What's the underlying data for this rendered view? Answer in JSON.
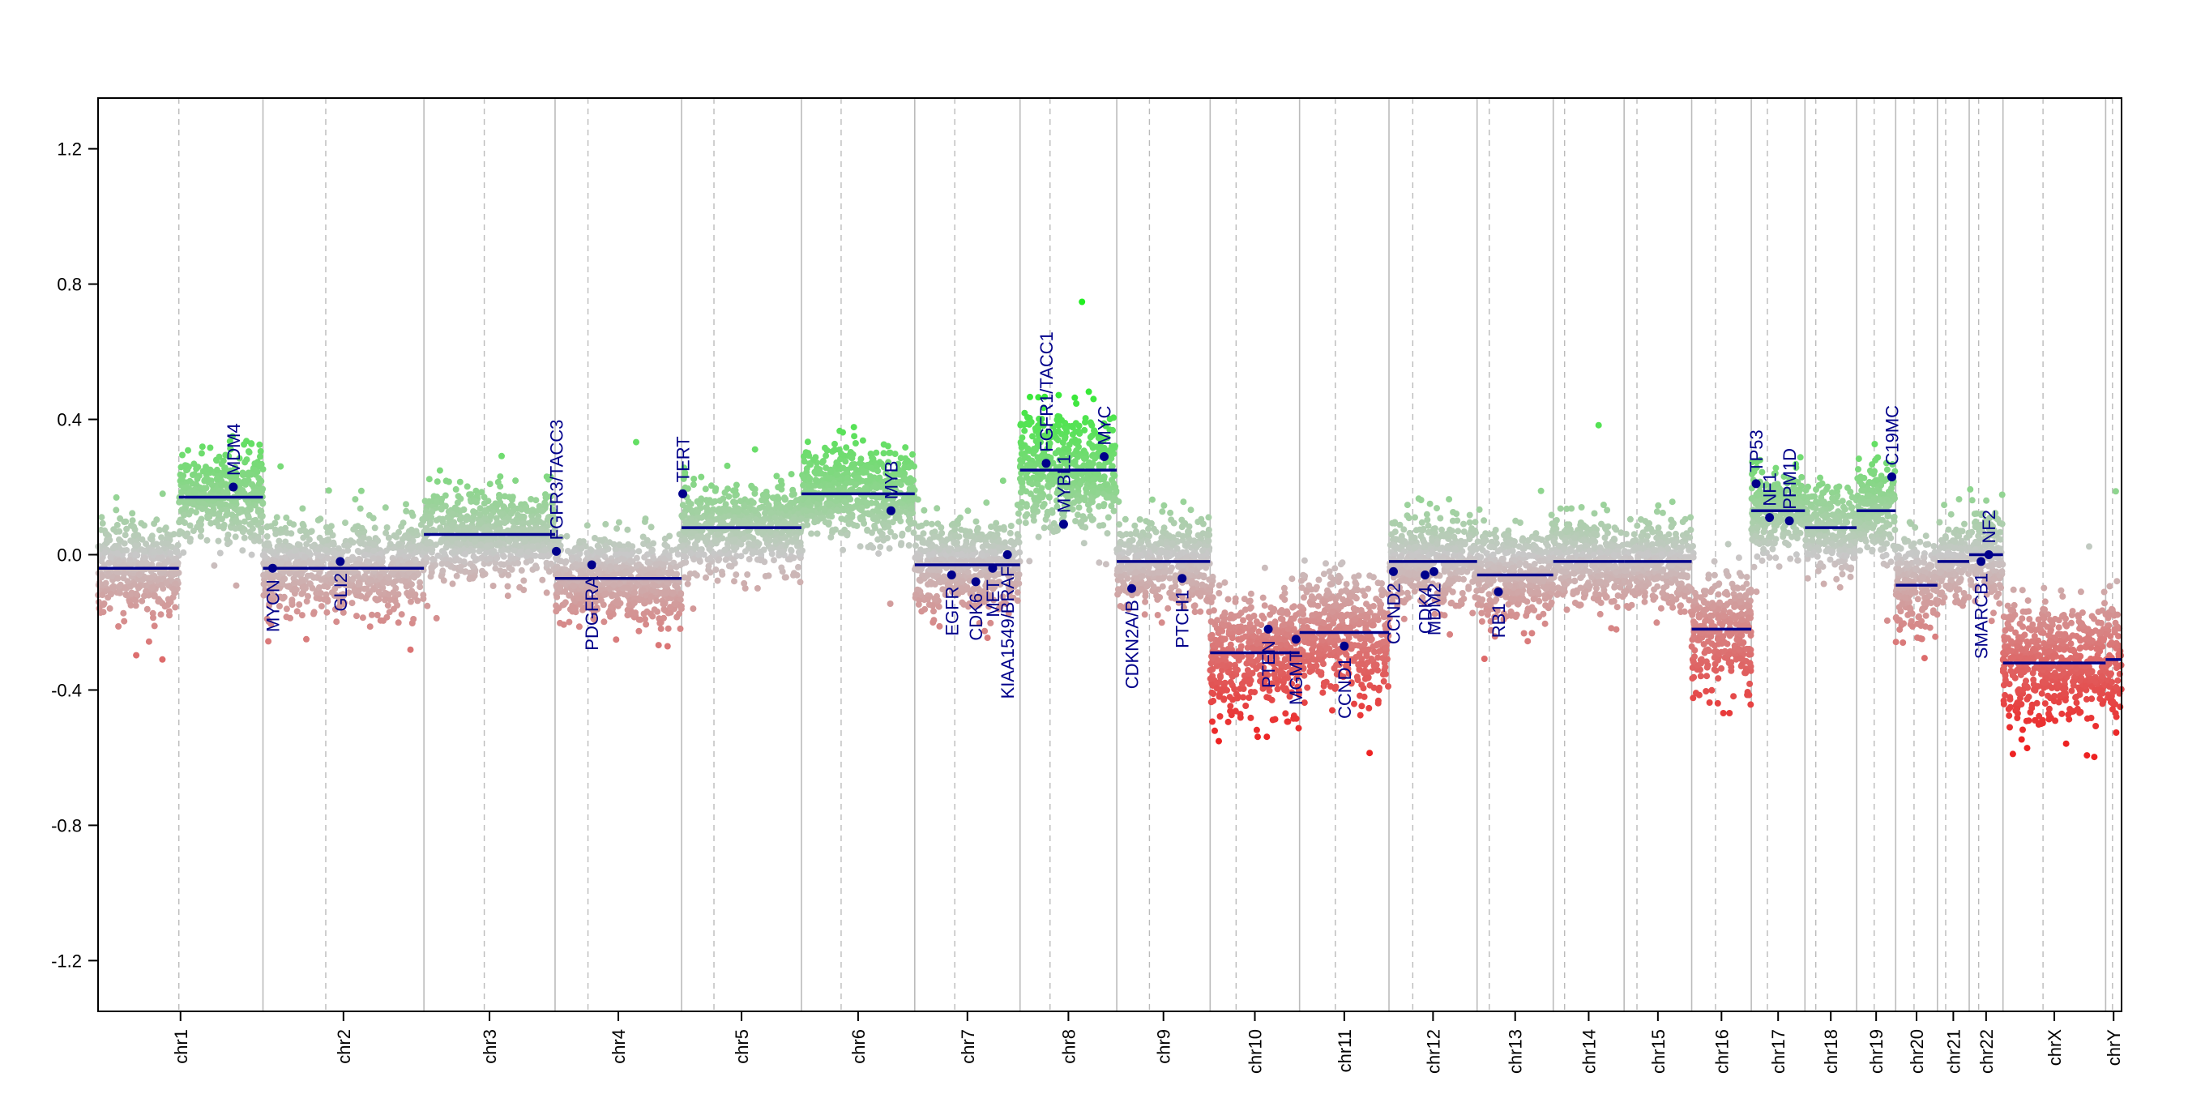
{
  "chart_data": {
    "type": "scatter",
    "title": "",
    "xlabel": "",
    "ylabel": "",
    "ylim": [
      -1.35,
      1.35
    ],
    "yticks": [
      -1.2,
      -0.8,
      -0.4,
      0.0,
      0.4,
      0.8,
      1.2
    ],
    "ytick_labels": [
      "-1.2",
      "-0.8",
      "-0.4",
      "0.0",
      "0.4",
      "0.8",
      "1.2"
    ],
    "grid": false,
    "colors": {
      "gain": "#22ee22",
      "neutral": "#c8c8c8",
      "loss": "#ee2222",
      "segment": "#00008b",
      "gene": "#00008b",
      "chrom_boundary": "#bbbbbb",
      "centromere": "#bbbbbb",
      "axis": "#000000"
    },
    "chromosomes": [
      {
        "name": "chr1",
        "size": 249,
        "centromere": 0.49,
        "segments": [
          [
            0.0,
            0.49,
            -0.04
          ],
          [
            0.49,
            1.0,
            0.17
          ]
        ]
      },
      {
        "name": "chr2",
        "size": 243,
        "centromere": 0.39,
        "segments": [
          [
            0.0,
            1.0,
            -0.04
          ]
        ]
      },
      {
        "name": "chr3",
        "size": 198,
        "centromere": 0.46,
        "segments": [
          [
            0.0,
            1.0,
            0.06
          ]
        ]
      },
      {
        "name": "chr4",
        "size": 191,
        "centromere": 0.26,
        "segments": [
          [
            0.0,
            1.0,
            -0.07
          ]
        ]
      },
      {
        "name": "chr5",
        "size": 181,
        "centromere": 0.27,
        "segments": [
          [
            0.0,
            1.0,
            0.08
          ]
        ]
      },
      {
        "name": "chr6",
        "size": 171,
        "centromere": 0.35,
        "segments": [
          [
            0.0,
            1.0,
            0.18
          ]
        ]
      },
      {
        "name": "chr7",
        "size": 159,
        "centromere": 0.38,
        "segments": [
          [
            0.0,
            1.0,
            -0.03
          ]
        ]
      },
      {
        "name": "chr8",
        "size": 146,
        "centromere": 0.31,
        "segments": [
          [
            0.0,
            1.0,
            0.25
          ]
        ]
      },
      {
        "name": "chr9",
        "size": 141,
        "centromere": 0.35,
        "segments": [
          [
            0.0,
            1.0,
            -0.02
          ]
        ]
      },
      {
        "name": "chr10",
        "size": 135,
        "centromere": 0.29,
        "segments": [
          [
            0.0,
            1.0,
            -0.29
          ]
        ]
      },
      {
        "name": "chr11",
        "size": 135,
        "centromere": 0.4,
        "segments": [
          [
            0.0,
            1.0,
            -0.23
          ]
        ]
      },
      {
        "name": "chr12",
        "size": 133,
        "centromere": 0.27,
        "segments": [
          [
            0.0,
            1.0,
            -0.02
          ]
        ]
      },
      {
        "name": "chr13",
        "size": 115,
        "centromere": 0.16,
        "segments": [
          [
            0.0,
            1.0,
            -0.06
          ]
        ]
      },
      {
        "name": "chr14",
        "size": 107,
        "centromere": 0.16,
        "segments": [
          [
            0.0,
            1.0,
            -0.02
          ]
        ]
      },
      {
        "name": "chr15",
        "size": 102,
        "centromere": 0.19,
        "segments": [
          [
            0.0,
            1.0,
            -0.02
          ]
        ]
      },
      {
        "name": "chr16",
        "size": 90,
        "centromere": 0.4,
        "segments": [
          [
            0.0,
            1.0,
            -0.22
          ]
        ]
      },
      {
        "name": "chr17",
        "size": 81,
        "centromere": 0.3,
        "segments": [
          [
            0.0,
            1.0,
            0.13
          ]
        ]
      },
      {
        "name": "chr18",
        "size": 78,
        "centromere": 0.21,
        "segments": [
          [
            0.0,
            1.0,
            0.08
          ]
        ]
      },
      {
        "name": "chr19",
        "size": 59,
        "centromere": 0.45,
        "segments": [
          [
            0.0,
            1.0,
            0.13
          ]
        ]
      },
      {
        "name": "chr20",
        "size": 63,
        "centromere": 0.44,
        "segments": [
          [
            0.0,
            1.0,
            -0.09
          ]
        ]
      },
      {
        "name": "chr21",
        "size": 48,
        "centromere": 0.26,
        "segments": [
          [
            0.0,
            1.0,
            -0.02
          ]
        ]
      },
      {
        "name": "chr22",
        "size": 51,
        "centromere": 0.28,
        "segments": [
          [
            0.0,
            1.0,
            0.0
          ]
        ]
      },
      {
        "name": "chrX",
        "size": 155,
        "centromere": 0.39,
        "segments": [
          [
            0.0,
            1.0,
            -0.32
          ]
        ]
      },
      {
        "name": "chrY",
        "size": 24,
        "centromere": 0.43,
        "segments": [
          [
            0.0,
            1.0,
            -0.31
          ]
        ]
      }
    ],
    "genes": [
      {
        "name": "MDM4",
        "chr": "chr1",
        "pos": 0.82,
        "value": 0.2,
        "side": "up"
      },
      {
        "name": "MYCN",
        "chr": "chr2",
        "pos": 0.06,
        "value": -0.04,
        "side": "down"
      },
      {
        "name": "GLI2",
        "chr": "chr2",
        "pos": 0.48,
        "value": -0.02,
        "side": "down"
      },
      {
        "name": "FGFR3/TACC3",
        "chr": "chr4",
        "pos": 0.01,
        "value": 0.01,
        "side": "up"
      },
      {
        "name": "PDGFRA",
        "chr": "chr4",
        "pos": 0.29,
        "value": -0.03,
        "side": "down"
      },
      {
        "name": "TERT",
        "chr": "chr5",
        "pos": 0.01,
        "value": 0.18,
        "side": "up"
      },
      {
        "name": "MYB",
        "chr": "chr6",
        "pos": 0.79,
        "value": 0.13,
        "side": "up"
      },
      {
        "name": "EGFR",
        "chr": "chr7",
        "pos": 0.35,
        "value": -0.06,
        "side": "down"
      },
      {
        "name": "CDK6",
        "chr": "chr7",
        "pos": 0.58,
        "value": -0.08,
        "side": "down"
      },
      {
        "name": "MET",
        "chr": "chr7",
        "pos": 0.74,
        "value": -0.04,
        "side": "down"
      },
      {
        "name": "KIAA1549/BRAF",
        "chr": "chr7",
        "pos": 0.88,
        "value": 0.0,
        "side": "down"
      },
      {
        "name": "FGFR1/TACC1",
        "chr": "chr8",
        "pos": 0.27,
        "value": 0.27,
        "side": "up"
      },
      {
        "name": "MYBL1",
        "chr": "chr8",
        "pos": 0.45,
        "value": 0.09,
        "side": "up"
      },
      {
        "name": "MYC",
        "chr": "chr8",
        "pos": 0.87,
        "value": 0.29,
        "side": "up"
      },
      {
        "name": "CDKN2A/B",
        "chr": "chr9",
        "pos": 0.16,
        "value": -0.1,
        "side": "down"
      },
      {
        "name": "PTCH1",
        "chr": "chr9",
        "pos": 0.7,
        "value": -0.07,
        "side": "down"
      },
      {
        "name": "PTEN",
        "chr": "chr10",
        "pos": 0.65,
        "value": -0.22,
        "side": "down"
      },
      {
        "name": "MGMT",
        "chr": "chr10",
        "pos": 0.96,
        "value": -0.25,
        "side": "down"
      },
      {
        "name": "CCND1",
        "chr": "chr11",
        "pos": 0.5,
        "value": -0.27,
        "side": "down"
      },
      {
        "name": "CCND2",
        "chr": "chr12",
        "pos": 0.05,
        "value": -0.05,
        "side": "down"
      },
      {
        "name": "CDK4",
        "chr": "chr12",
        "pos": 0.41,
        "value": -0.06,
        "side": "down"
      },
      {
        "name": "MDM2",
        "chr": "chr12",
        "pos": 0.51,
        "value": -0.05,
        "side": "down"
      },
      {
        "name": "RB1",
        "chr": "chr13",
        "pos": 0.28,
        "value": -0.11,
        "side": "down"
      },
      {
        "name": "TP53",
        "chr": "chr17",
        "pos": 0.09,
        "value": 0.21,
        "side": "up"
      },
      {
        "name": "NF1",
        "chr": "chr17",
        "pos": 0.34,
        "value": 0.11,
        "side": "up"
      },
      {
        "name": "PPM1D",
        "chr": "chr17",
        "pos": 0.71,
        "value": 0.1,
        "side": "up"
      },
      {
        "name": "C19MC",
        "chr": "chr19",
        "pos": 0.9,
        "value": 0.23,
        "side": "up"
      },
      {
        "name": "SMARCB1",
        "chr": "chr22",
        "pos": 0.35,
        "value": -0.02,
        "side": "down"
      },
      {
        "name": "NF2",
        "chr": "chr22",
        "pos": 0.58,
        "value": 0.0,
        "side": "up"
      }
    ]
  }
}
